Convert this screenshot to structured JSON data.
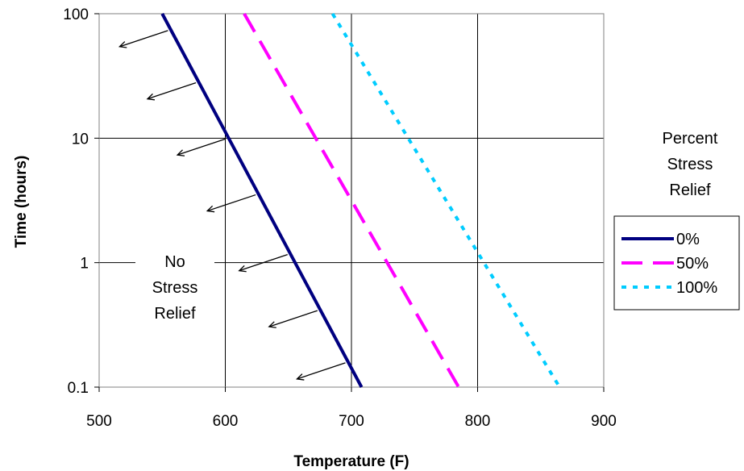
{
  "chart_data": {
    "type": "line",
    "title": "",
    "xlabel": "Temperature (F)",
    "ylabel": "Time (hours)",
    "xlim": [
      500,
      900
    ],
    "ylim": [
      0.1,
      100
    ],
    "yscale": "log",
    "grid": true,
    "x_ticks": [
      "500",
      "600",
      "700",
      "800",
      "900"
    ],
    "y_ticks": [
      "0.1",
      "1",
      "10",
      "100"
    ],
    "legend": {
      "title_lines": [
        "Percent",
        "Stress",
        "Relief"
      ],
      "placement": "right"
    },
    "series": [
      {
        "name": "0%",
        "color": "#000080",
        "dash": "solid",
        "points": [
          {
            "x": 550,
            "y": 100
          },
          {
            "x": 708,
            "y": 0.1
          }
        ]
      },
      {
        "name": "50%",
        "color": "#ff00ff",
        "dash": "dashed",
        "points": [
          {
            "x": 615,
            "y": 100
          },
          {
            "x": 785,
            "y": 0.1
          }
        ]
      },
      {
        "name": "100%",
        "color": "#00ccff",
        "dash": "dotted",
        "points": [
          {
            "x": 685,
            "y": 100
          },
          {
            "x": 865,
            "y": 0.1
          }
        ]
      }
    ],
    "annotation": {
      "lines": [
        "No",
        "Stress",
        "Relief"
      ]
    }
  }
}
